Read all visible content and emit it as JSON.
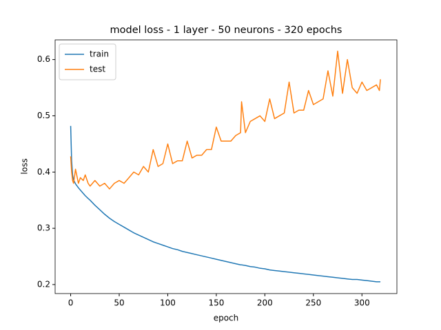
{
  "chart_data": {
    "type": "line",
    "title": "model loss - 1 layer - 50 neurons - 320 epochs",
    "xlabel": "epoch",
    "ylabel": "loss",
    "x": [
      0,
      1,
      2,
      3,
      5,
      8,
      10,
      13,
      15,
      18,
      20,
      25,
      30,
      35,
      40,
      45,
      50,
      55,
      60,
      65,
      70,
      75,
      80,
      85,
      90,
      95,
      100,
      105,
      110,
      115,
      120,
      125,
      130,
      135,
      140,
      145,
      150,
      155,
      160,
      165,
      170,
      175,
      176,
      180,
      185,
      190,
      195,
      200,
      205,
      210,
      215,
      220,
      225,
      230,
      235,
      240,
      245,
      250,
      255,
      260,
      265,
      270,
      275,
      280,
      285,
      290,
      295,
      300,
      305,
      310,
      315,
      318,
      319
    ],
    "series": [
      {
        "name": "train",
        "color": "#1f77b4",
        "values": [
          0.482,
          0.42,
          0.395,
          0.386,
          0.379,
          0.372,
          0.368,
          0.362,
          0.358,
          0.353,
          0.35,
          0.341,
          0.333,
          0.325,
          0.318,
          0.312,
          0.307,
          0.302,
          0.297,
          0.292,
          0.288,
          0.284,
          0.28,
          0.276,
          0.273,
          0.27,
          0.267,
          0.264,
          0.262,
          0.259,
          0.257,
          0.255,
          0.253,
          0.251,
          0.249,
          0.247,
          0.245,
          0.243,
          0.241,
          0.239,
          0.237,
          0.235,
          0.235,
          0.234,
          0.232,
          0.231,
          0.229,
          0.228,
          0.226,
          0.225,
          0.224,
          0.223,
          0.222,
          0.221,
          0.22,
          0.219,
          0.218,
          0.217,
          0.216,
          0.215,
          0.214,
          0.213,
          0.212,
          0.211,
          0.21,
          0.209,
          0.209,
          0.208,
          0.207,
          0.206,
          0.205,
          0.205,
          0.205
        ]
      },
      {
        "name": "test",
        "color": "#ff7f0e",
        "values": [
          0.428,
          0.4,
          0.385,
          0.38,
          0.405,
          0.38,
          0.39,
          0.385,
          0.395,
          0.38,
          0.375,
          0.385,
          0.375,
          0.38,
          0.37,
          0.38,
          0.385,
          0.38,
          0.39,
          0.4,
          0.395,
          0.41,
          0.4,
          0.44,
          0.41,
          0.415,
          0.45,
          0.415,
          0.42,
          0.42,
          0.455,
          0.425,
          0.43,
          0.43,
          0.44,
          0.44,
          0.48,
          0.455,
          0.455,
          0.455,
          0.465,
          0.47,
          0.525,
          0.47,
          0.49,
          0.495,
          0.5,
          0.49,
          0.53,
          0.495,
          0.5,
          0.505,
          0.56,
          0.505,
          0.51,
          0.51,
          0.545,
          0.52,
          0.525,
          0.53,
          0.58,
          0.535,
          0.615,
          0.54,
          0.6,
          0.55,
          0.54,
          0.56,
          0.545,
          0.55,
          0.555,
          0.545,
          0.565
        ]
      }
    ],
    "xlim": [
      -16,
      336
    ],
    "ylim": [
      0.184,
      0.635
    ],
    "xticks": [
      0,
      50,
      100,
      150,
      200,
      250,
      300
    ],
    "yticks": [
      0.2,
      0.3,
      0.4,
      0.5,
      0.6
    ],
    "grid": false,
    "legend": "upper-left"
  }
}
